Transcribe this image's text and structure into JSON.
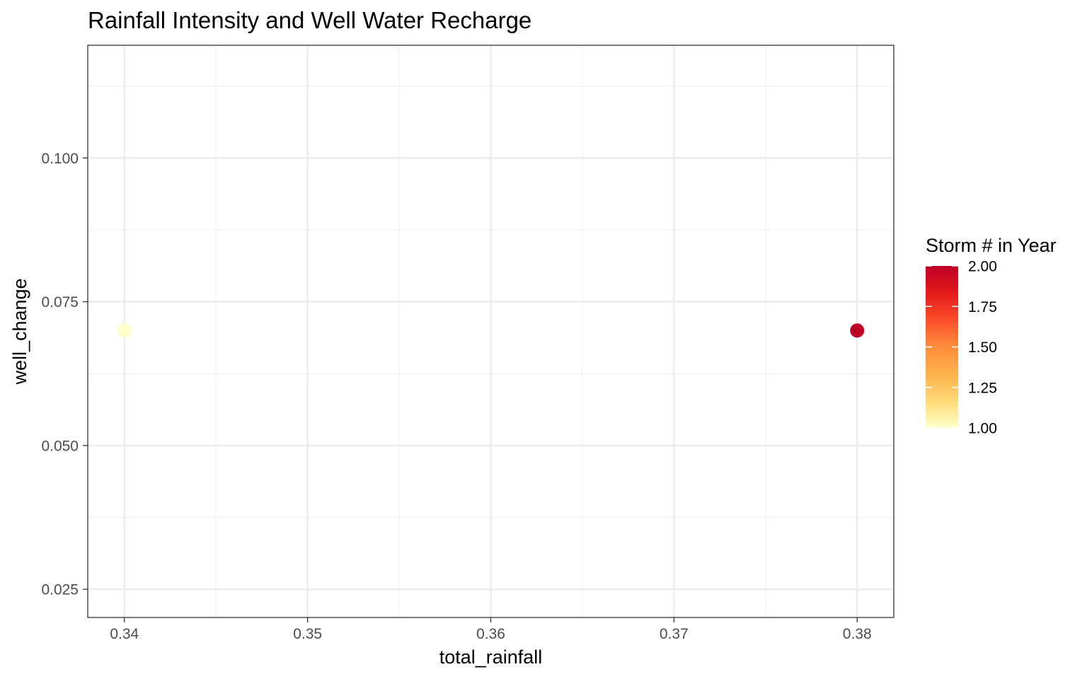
{
  "chart_data": {
    "type": "scatter",
    "title": "Rainfall Intensity and Well Water Recharge",
    "xlabel": "total_rainfall",
    "ylabel": "well_change",
    "xlim": [
      0.338,
      0.382
    ],
    "ylim": [
      0.0201,
      0.1196
    ],
    "x_ticks": [
      {
        "value": 0.34,
        "label": "0.34"
      },
      {
        "value": 0.35,
        "label": "0.35"
      },
      {
        "value": 0.36,
        "label": "0.36"
      },
      {
        "value": 0.37,
        "label": "0.37"
      },
      {
        "value": 0.38,
        "label": "0.38"
      }
    ],
    "y_ticks": [
      {
        "value": 0.025,
        "label": "0.025"
      },
      {
        "value": 0.05,
        "label": "0.050"
      },
      {
        "value": 0.075,
        "label": "0.075"
      },
      {
        "value": 0.1,
        "label": "0.100"
      }
    ],
    "grid": true,
    "points": [
      {
        "x": 0.34,
        "y": 0.07,
        "storm": 1
      },
      {
        "x": 0.38,
        "y": 0.07,
        "storm": 2
      }
    ],
    "legend": {
      "title": "Storm # in Year",
      "placement": "right",
      "range": [
        1,
        2
      ],
      "colors": [
        "#FFFFCC",
        "#FED976",
        "#FEB24C",
        "#FD8D3C",
        "#FC4E2A",
        "#E31A1C",
        "#BD0026"
      ],
      "low_color": "#FFFFE0",
      "high_color": "#CC0000",
      "ticks": [
        {
          "value": 1.0,
          "label": "1.00"
        },
        {
          "value": 1.25,
          "label": "1.25"
        },
        {
          "value": 1.5,
          "label": "1.50"
        },
        {
          "value": 1.75,
          "label": "1.75"
        },
        {
          "value": 2.0,
          "label": "2.00"
        }
      ]
    }
  }
}
